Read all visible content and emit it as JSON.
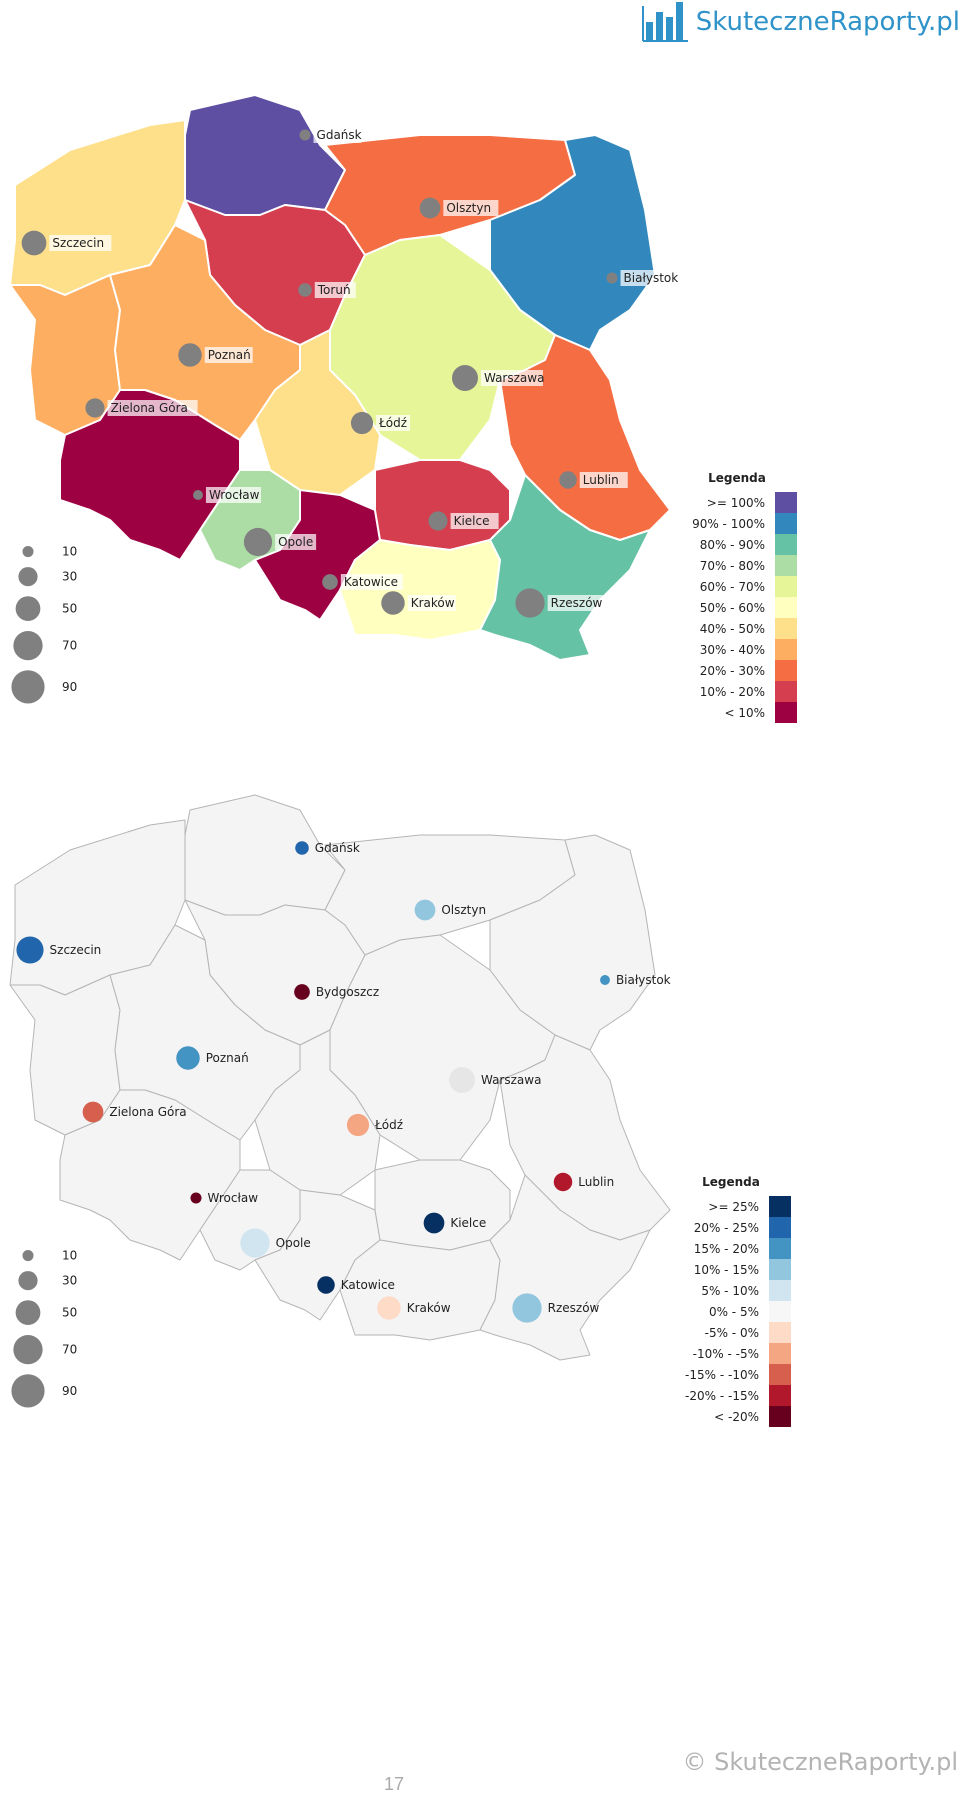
{
  "header": {
    "brand": "SkuteczneRaporty.pl"
  },
  "footer": {
    "copyright": "© SkuteczneRaporty.pl",
    "page_number": "17"
  },
  "colors": {
    "bubble": "#808080",
    "map1_border": "#ffffff",
    "map2_fill": "#f4f4f4",
    "map2_border": "#b5b5b5"
  },
  "map1": {
    "legend": {
      "title": "Legenda",
      "items": [
        {
          "label": ">=  100%",
          "color": "#5e4fa2"
        },
        {
          "label": "90% -  100%",
          "color": "#3288bd"
        },
        {
          "label": "80% -  90%",
          "color": "#66c2a5"
        },
        {
          "label": "70% -  80%",
          "color": "#abdda4"
        },
        {
          "label": "60% -  70%",
          "color": "#e6f598"
        },
        {
          "label": "50% -  60%",
          "color": "#ffffbf"
        },
        {
          "label": "40% -  50%",
          "color": "#fee08b"
        },
        {
          "label": "30% -  40%",
          "color": "#fdae61"
        },
        {
          "label": "20% -  30%",
          "color": "#f46d43"
        },
        {
          "label": "10% -  20%",
          "color": "#d53e4f"
        },
        {
          "label": "<   10%",
          "color": "#9e0142"
        }
      ]
    },
    "size_legend": [
      {
        "label": "10",
        "value": 10
      },
      {
        "label": "30",
        "value": 30
      },
      {
        "label": "50",
        "value": 50
      },
      {
        "label": "70",
        "value": 70
      },
      {
        "label": "90",
        "value": 90
      }
    ],
    "regions": [
      {
        "id": "pomorskie",
        "color": "#5e4fa2"
      },
      {
        "id": "zachodniopomorskie",
        "color": "#fee08b"
      },
      {
        "id": "warminsko-mazurskie",
        "color": "#f46d43"
      },
      {
        "id": "podlaskie",
        "color": "#3288bd"
      },
      {
        "id": "kujawsko-pomorskie",
        "color": "#d53e4f"
      },
      {
        "id": "lubuskie",
        "color": "#fdae61"
      },
      {
        "id": "wielkopolskie",
        "color": "#fdae61"
      },
      {
        "id": "mazowieckie",
        "color": "#e6f598"
      },
      {
        "id": "lodzkie",
        "color": "#fee08b"
      },
      {
        "id": "lubelskie",
        "color": "#f46d43"
      },
      {
        "id": "dolnoslaskie",
        "color": "#9e0142"
      },
      {
        "id": "opolskie",
        "color": "#abdda4"
      },
      {
        "id": "slaskie",
        "color": "#9e0142"
      },
      {
        "id": "swietokrzyskie",
        "color": "#d53e4f"
      },
      {
        "id": "malopolskie",
        "color": "#ffffbf"
      },
      {
        "id": "podkarpackie",
        "color": "#66c2a5"
      }
    ],
    "cities": [
      {
        "name": "Gdańsk",
        "size": 10
      },
      {
        "name": "Olsztyn",
        "size": 35
      },
      {
        "name": "Białystok",
        "size": 10
      },
      {
        "name": "Szczecin",
        "size": 50
      },
      {
        "name": "Toruń",
        "size": 15
      },
      {
        "name": "Poznań",
        "size": 45
      },
      {
        "name": "Zielona Góra",
        "size": 30
      },
      {
        "name": "Warszawa",
        "size": 55
      },
      {
        "name": "Łódź",
        "size": 40
      },
      {
        "name": "Lublin",
        "size": 25
      },
      {
        "name": "Wrocław",
        "size": 8
      },
      {
        "name": "Kielce",
        "size": 30
      },
      {
        "name": "Opole",
        "size": 65
      },
      {
        "name": "Katowice",
        "size": 20
      },
      {
        "name": "Kraków",
        "size": 45
      },
      {
        "name": "Rzeszów",
        "size": 70
      }
    ]
  },
  "map2": {
    "legend": {
      "title": "Legenda",
      "items": [
        {
          "label": ">=   25%",
          "color": "#053061"
        },
        {
          "label": "20% -  25%",
          "color": "#2166ac"
        },
        {
          "label": "15% -  20%",
          "color": "#4393c3"
        },
        {
          "label": "10% -  15%",
          "color": "#92c5de"
        },
        {
          "label": "5% -  10%",
          "color": "#d1e5f0"
        },
        {
          "label": "0% -   5%",
          "color": "#f7f7f7"
        },
        {
          "label": "-5% -   0%",
          "color": "#fddbc7"
        },
        {
          "label": "-10% -  -5%",
          "color": "#f4a582"
        },
        {
          "label": "-15% -  -10%",
          "color": "#d6604d"
        },
        {
          "label": "-20% -  -15%",
          "color": "#b2182b"
        },
        {
          "label": "<   -20%",
          "color": "#67001f"
        }
      ]
    },
    "size_legend": [
      {
        "label": "10",
        "value": 10
      },
      {
        "label": "30",
        "value": 30
      },
      {
        "label": "50",
        "value": 50
      },
      {
        "label": "70",
        "value": 70
      },
      {
        "label": "90",
        "value": 90
      }
    ],
    "cities": [
      {
        "name": "Gdańsk",
        "size": 15,
        "color": "#2166ac"
      },
      {
        "name": "Olsztyn",
        "size": 35,
        "color": "#92c5de"
      },
      {
        "name": "Białystok",
        "size": 8,
        "color": "#4393c3"
      },
      {
        "name": "Szczecin",
        "size": 60,
        "color": "#2166ac"
      },
      {
        "name": "Bydgoszcz",
        "size": 20,
        "color": "#67001f"
      },
      {
        "name": "Poznań",
        "size": 45,
        "color": "#4393c3"
      },
      {
        "name": "Zielona Góra",
        "size": 35,
        "color": "#d6604d"
      },
      {
        "name": "Warszawa",
        "size": 55,
        "color": "#e6e6e6"
      },
      {
        "name": "Łódź",
        "size": 40,
        "color": "#f4a582"
      },
      {
        "name": "Lublin",
        "size": 28,
        "color": "#b2182b"
      },
      {
        "name": "Wrocław",
        "size": 10,
        "color": "#67001f"
      },
      {
        "name": "Kielce",
        "size": 35,
        "color": "#053061"
      },
      {
        "name": "Opole",
        "size": 70,
        "color": "#d1e5f0"
      },
      {
        "name": "Katowice",
        "size": 25,
        "color": "#053061"
      },
      {
        "name": "Kraków",
        "size": 45,
        "color": "#fddbc7"
      },
      {
        "name": "Rzeszów",
        "size": 70,
        "color": "#92c5de"
      }
    ]
  }
}
